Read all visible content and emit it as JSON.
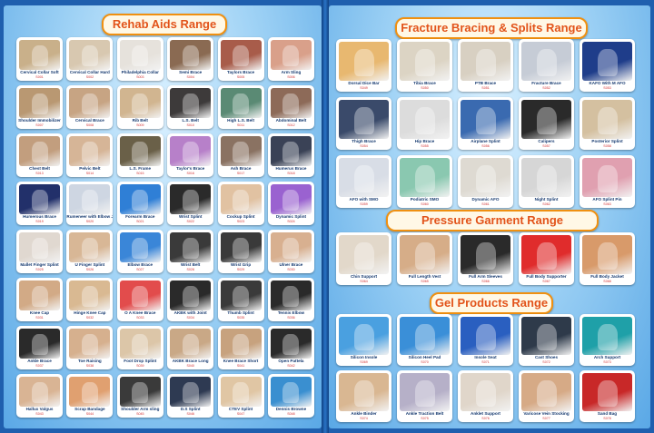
{
  "left_page": {
    "title": "Rehab Aids Range",
    "products": [
      {
        "label": "Cervical Collar Soft",
        "code": "S001",
        "color": "#c9b08a"
      },
      {
        "label": "Cervical Collar Hard",
        "code": "S002",
        "color": "#d8c8b0"
      },
      {
        "label": "Philadelphia Collar",
        "code": "S003",
        "color": "#e6e2dc"
      },
      {
        "label": "Semi Brace",
        "code": "S004",
        "color": "#8a6a52"
      },
      {
        "label": "Taylors Brace",
        "code": "S005",
        "color": "#a85c4a"
      },
      {
        "label": "Arm Sling",
        "code": "S006",
        "color": "#d9a08a"
      },
      {
        "label": "Shoulder Immobilizer",
        "code": "S007",
        "color": "#b99872"
      },
      {
        "label": "Cervical Brace",
        "code": "S008",
        "color": "#c7a483"
      },
      {
        "label": "Rib Belt",
        "code": "S009",
        "color": "#d1b590"
      },
      {
        "label": "L.S. Belt",
        "code": "S010",
        "color": "#3d3a3a"
      },
      {
        "label": "High L.S. Belt",
        "code": "S011",
        "color": "#5a8a74"
      },
      {
        "label": "Abdominal Belt",
        "code": "S012",
        "color": "#8d6a58"
      },
      {
        "label": "Chest Belt",
        "code": "S013",
        "color": "#c29e7e"
      },
      {
        "label": "Pelvic Belt",
        "code": "S014",
        "color": "#d6b597"
      },
      {
        "label": "L.S. Frame",
        "code": "S015",
        "color": "#6a6048"
      },
      {
        "label": "Taylor's Brace",
        "code": "S016",
        "color": "#b780c9"
      },
      {
        "label": "Ash Brace",
        "code": "S017",
        "color": "#8a7262"
      },
      {
        "label": "Humerus Brace",
        "code": "S018",
        "color": "#3a4256"
      },
      {
        "label": "Humerous Brace",
        "code": "S019",
        "color": "#22306a"
      },
      {
        "label": "Rumeneer with Elbow Joint",
        "code": "S020",
        "color": "#ced6e2"
      },
      {
        "label": "Forearm Brace",
        "code": "S021",
        "color": "#2f7fd6"
      },
      {
        "label": "Wrist Splint",
        "code": "S022",
        "color": "#2a2a2a"
      },
      {
        "label": "Cockup Splint",
        "code": "S023",
        "color": "#e1c2a2"
      },
      {
        "label": "Dynamic Splint",
        "code": "S024",
        "color": "#9a62d0"
      },
      {
        "label": "Mallet Finger Splint",
        "code": "S025",
        "color": "#e0d8d0"
      },
      {
        "label": "U Finger Splint",
        "code": "S026",
        "color": "#d8b796"
      },
      {
        "label": "Elbow Brace",
        "code": "S027",
        "color": "#3a86d8"
      },
      {
        "label": "Wrist Belt",
        "code": "S028",
        "color": "#3a3a3a"
      },
      {
        "label": "Wrist Grip",
        "code": "S029",
        "color": "#3a3a3a"
      },
      {
        "label": "Ulner Brace",
        "code": "S030",
        "color": "#d8b090"
      },
      {
        "label": "Knee Cap",
        "code": "S031",
        "color": "#d2aa86"
      },
      {
        "label": "Hinge Knee Cap",
        "code": "S032",
        "color": "#d9b992"
      },
      {
        "label": "O A Knee Brace",
        "code": "S033",
        "color": "#e24c4c"
      },
      {
        "label": "AKBK with Joint",
        "code": "S034",
        "color": "#2a2a2a"
      },
      {
        "label": "Thumb Splint",
        "code": "S035",
        "color": "#3a3a3a"
      },
      {
        "label": "Tennis Elbow",
        "code": "S036",
        "color": "#2a2a2a"
      },
      {
        "label": "Ankle Brace",
        "code": "S037",
        "color": "#2a2a2a"
      },
      {
        "label": "Toe Raising",
        "code": "S038",
        "color": "#d6b08e"
      },
      {
        "label": "Foot Drop Splint",
        "code": "S039",
        "color": "#dcc6a8"
      },
      {
        "label": "AKBK Brace Long",
        "code": "S040",
        "color": "#c9a886"
      },
      {
        "label": "Knee Brace Short",
        "code": "S041",
        "color": "#c7a27e"
      },
      {
        "label": "Open Pattela",
        "code": "S042",
        "color": "#2a2a2a"
      },
      {
        "label": "Hallux Valgus",
        "code": "S043",
        "color": "#d9b494"
      },
      {
        "label": "Scrap Bandage",
        "code": "S044",
        "color": "#e0a070"
      },
      {
        "label": "Shoulder Arm sling",
        "code": "S045",
        "color": "#3a3a3a"
      },
      {
        "label": "D.S Splint",
        "code": "S046",
        "color": "#2e3a52"
      },
      {
        "label": "CTEV Splint",
        "code": "S047",
        "color": "#e0c6a4"
      },
      {
        "label": "Dennis Browne",
        "code": "S048",
        "color": "#3a8fd0"
      }
    ]
  },
  "right_page": {
    "fracture": {
      "title": "Fracture Bracing & Splits Range",
      "products": [
        {
          "label": "Dorsal Dice Bar",
          "code": "S049",
          "color": "#e8b870"
        },
        {
          "label": "Tibia Brace",
          "code": "S050",
          "color": "#dcd4c4"
        },
        {
          "label": "PTB Brace",
          "code": "S051",
          "color": "#d8d0c2"
        },
        {
          "label": "Fracture Brace",
          "code": "S052",
          "color": "#c6ccd6"
        },
        {
          "label": "KAFO With M AFO",
          "code": "S053",
          "color": "#1f3d8a"
        },
        {
          "label": "Thigh Brace",
          "code": "S054",
          "color": "#3a4a6a"
        },
        {
          "label": "Hip Brace",
          "code": "S055",
          "color": "#dcdcdc"
        },
        {
          "label": "Airplane Splint",
          "code": "S056",
          "color": "#3a6ab0"
        },
        {
          "label": "Calipers",
          "code": "S057",
          "color": "#2a2a2a"
        },
        {
          "label": "Posterior Splint",
          "code": "S058",
          "color": "#d4c0a0"
        },
        {
          "label": "AFO with SMO",
          "code": "S059",
          "color": "#d8dde6"
        },
        {
          "label": "Podiatric SMO",
          "code": "S060",
          "color": "#8ac8b0"
        },
        {
          "label": "Dynamic AFO",
          "code": "S061",
          "color": "#dedad2"
        },
        {
          "label": "Night Splint",
          "code": "S062",
          "color": "#d6d6d6"
        },
        {
          "label": "AFO Splint Pin",
          "code": "S063",
          "color": "#e0a0b0"
        }
      ]
    },
    "pressure": {
      "title": "Pressure Garment Range",
      "products": [
        {
          "label": "Chin Support",
          "code": "S064",
          "color": "#e2d8ca"
        },
        {
          "label": "Full Length Vest",
          "code": "S065",
          "color": "#d6ad88"
        },
        {
          "label": "Full Arm Sleeves",
          "code": "S066",
          "color": "#2a2a2a"
        },
        {
          "label": "Full Body Supporter",
          "code": "S067",
          "color": "#e02c2c"
        },
        {
          "label": "Full Body Jacket",
          "code": "S068",
          "color": "#d89a6a"
        }
      ]
    },
    "gel": {
      "title": "Gel Products Range",
      "products": [
        {
          "label": "Silicon Insole",
          "code": "S069",
          "color": "#4aa0e0"
        },
        {
          "label": "Silicon Heel Pad",
          "code": "S070",
          "color": "#3a8fd8"
        },
        {
          "label": "Insole Seat",
          "code": "S071",
          "color": "#2a5fc0"
        },
        {
          "label": "Cast Shoes",
          "code": "S072",
          "color": "#2e3a4a"
        },
        {
          "label": "Arch Support",
          "code": "S073",
          "color": "#1fa0a8"
        },
        {
          "label": "Ankle Binder",
          "code": "S074",
          "color": "#d9b792"
        },
        {
          "label": "Ankle Traction Belt",
          "code": "S075",
          "color": "#b6b0c8"
        },
        {
          "label": "Anklet Support",
          "code": "S076",
          "color": "#e0d6ca"
        },
        {
          "label": "Varicose Vein Stocking",
          "code": "S077",
          "color": "#d6aa86"
        },
        {
          "label": "Sand Bag",
          "code": "S078",
          "color": "#c82828"
        }
      ]
    }
  }
}
